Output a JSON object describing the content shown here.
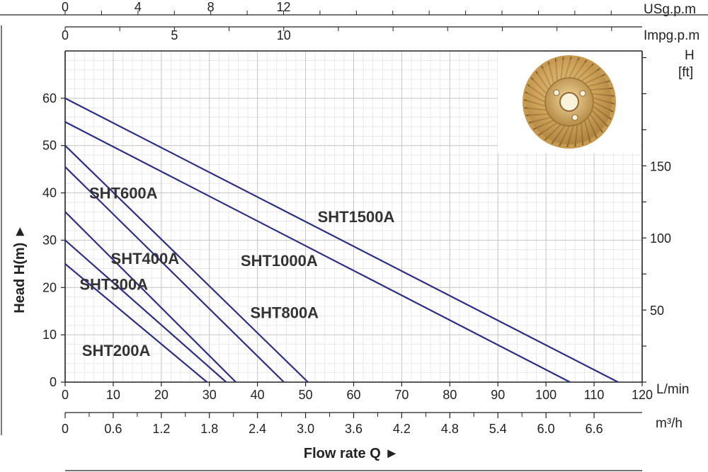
{
  "chart_data": {
    "type": "line",
    "x_unit": "L/min",
    "x_range": [
      0,
      120
    ],
    "x_ticks": [
      0,
      10,
      20,
      30,
      40,
      50,
      60,
      70,
      80,
      90,
      100,
      110,
      120
    ],
    "y_range": [
      0,
      70
    ],
    "y_ticks": [
      0,
      10,
      20,
      30,
      40,
      50,
      60
    ],
    "ylabel": "Head H(m) ►",
    "xlabel": "Flow rate Q ►",
    "m3h_unit": "m³/h",
    "m3h_tick_labels": [
      "0",
      "0.6",
      "1.2",
      "1.8",
      "2.4",
      "3.0",
      "3.6",
      "4.2",
      "4.8",
      "5.4",
      "6.0",
      "6.6"
    ],
    "usgpm_unit": "USg.p.m",
    "usgpm_tick_labels": [
      "0",
      "4",
      "8",
      "12"
    ],
    "impgpm_unit": "Impg.p.m",
    "impgpm_tick_labels": [
      "0",
      "5",
      "10"
    ],
    "ft_unit_h": "H",
    "ft_unit": "[ft]",
    "ft_tick_labels": [
      "50",
      "100",
      "150"
    ],
    "grid": true,
    "series": [
      {
        "name": "SHT200A",
        "x": [
          0,
          29.5
        ],
        "y": [
          25,
          0
        ],
        "color": "#2e2f84"
      },
      {
        "name": "SHT300A",
        "x": [
          0,
          33.5
        ],
        "y": [
          30,
          0
        ],
        "color": "#2e2f84"
      },
      {
        "name": "SHT400A",
        "x": [
          0,
          35.5
        ],
        "y": [
          36,
          0
        ],
        "color": "#2e2f84"
      },
      {
        "name": "SHT600A",
        "x": [
          0,
          45.5
        ],
        "y": [
          45.5,
          0
        ],
        "color": "#2e2f84"
      },
      {
        "name": "SHT800A",
        "x": [
          0,
          50.5
        ],
        "y": [
          50,
          0
        ],
        "color": "#2e2f84"
      },
      {
        "name": "SHT1000A",
        "x": [
          0,
          105
        ],
        "y": [
          55,
          0
        ],
        "color": "#2e2f84"
      },
      {
        "name": "SHT1500A",
        "x": [
          0,
          115
        ],
        "y": [
          60,
          0
        ],
        "color": "#2e2f84"
      }
    ],
    "labels": [
      {
        "text": "SHT200A",
        "x": 3.5,
        "y": 5.5
      },
      {
        "text": "SHT300A",
        "x": 3,
        "y": 19.5
      },
      {
        "text": "SHT400A",
        "x": 9.5,
        "y": 25
      },
      {
        "text": "SHT600A",
        "x": 5,
        "y": 38.8
      },
      {
        "text": "SHT800A",
        "x": 38.5,
        "y": 13.5
      },
      {
        "text": "SHT1000A",
        "x": 36.5,
        "y": 24.5
      },
      {
        "text": "SHT1500A",
        "x": 52.5,
        "y": 33.8
      }
    ]
  },
  "inset_image": "brass-impeller"
}
